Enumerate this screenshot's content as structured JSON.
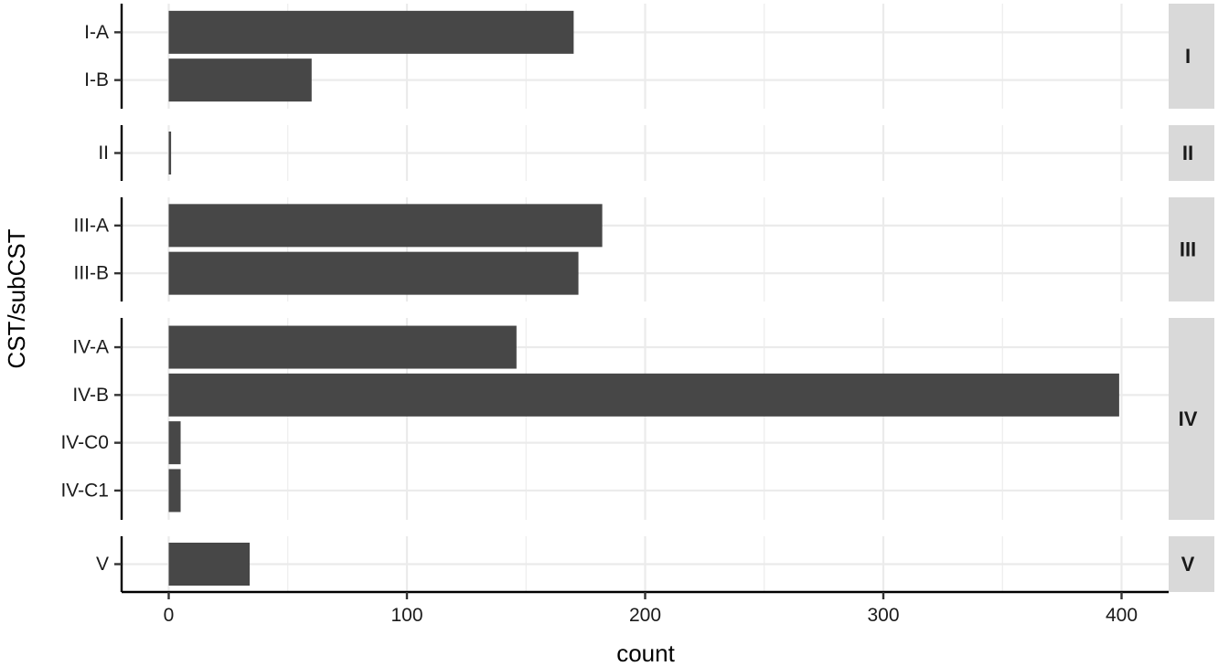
{
  "chart_data": {
    "type": "bar",
    "orientation": "horizontal",
    "faceted": true,
    "xlabel": "count",
    "ylabel": "CST/subCST",
    "xlim": [
      0,
      400
    ],
    "xticks": [
      0,
      100,
      200,
      300,
      400
    ],
    "grid": true,
    "bar_color": "#474747",
    "strip_color": "#d9d9d9",
    "facets": [
      {
        "label": "I",
        "categories": [
          "I-A",
          "I-B"
        ],
        "values": [
          170,
          60
        ]
      },
      {
        "label": "II",
        "categories": [
          "II"
        ],
        "values": [
          1
        ]
      },
      {
        "label": "III",
        "categories": [
          "III-A",
          "III-B"
        ],
        "values": [
          182,
          172
        ]
      },
      {
        "label": "IV",
        "categories": [
          "IV-A",
          "IV-B",
          "IV-C0",
          "IV-C1"
        ],
        "values": [
          146,
          399,
          5,
          5
        ]
      },
      {
        "label": "V",
        "categories": [
          "V"
        ],
        "values": [
          34
        ]
      }
    ]
  }
}
